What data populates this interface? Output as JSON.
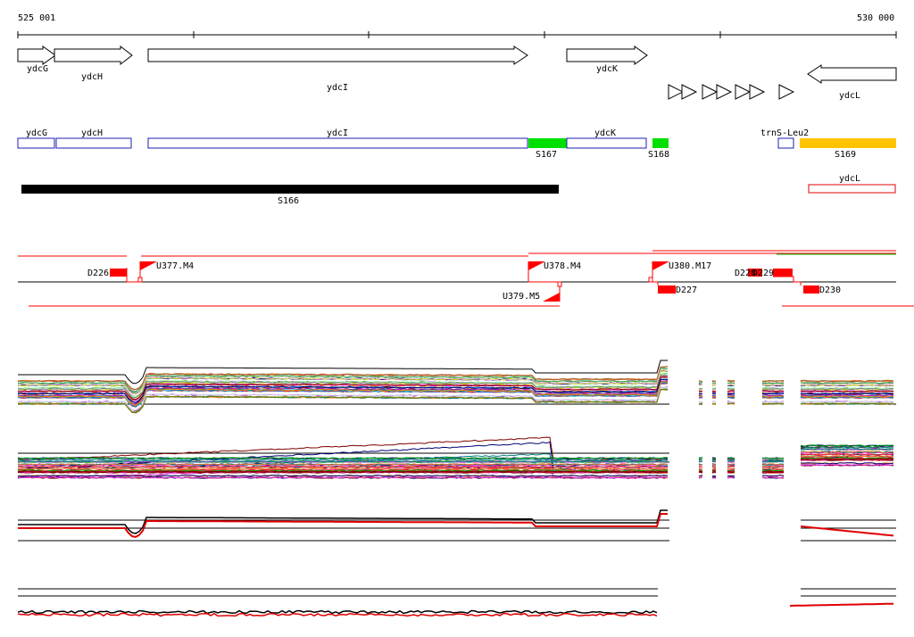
{
  "ruler": {
    "start_label": "525 001",
    "end_label": "530 000"
  },
  "arrow_genes": [
    {
      "id": "ydcG",
      "label": "ydcG",
      "strand": "+"
    },
    {
      "id": "ydcH",
      "label": "ydcH",
      "strand": "+"
    },
    {
      "id": "ydcI",
      "label": "ydcI",
      "strand": "+"
    },
    {
      "id": "ydcK",
      "label": "ydcK",
      "strand": "+"
    },
    {
      "id": "ydcL",
      "label": "ydcL",
      "strand": "-"
    }
  ],
  "box_features": [
    {
      "label": "ydcG",
      "color": "#1f1fb4",
      "filled": false
    },
    {
      "label": "ydcH",
      "color": "#1f1fb4",
      "filled": false
    },
    {
      "label": "ydcI",
      "color": "#1f1fb4",
      "filled": false
    },
    {
      "label": "S167",
      "color": "#00e000",
      "filled": true
    },
    {
      "label": "ydcK",
      "color": "#1f1fb4",
      "filled": false
    },
    {
      "label": "S168",
      "color": "#00e000",
      "filled": true
    },
    {
      "label": "trnS-Leu2",
      "color": "#1f1fb4",
      "filled": false
    },
    {
      "label": "S169",
      "color": "#ffc400",
      "filled": true
    },
    {
      "label": "S166",
      "color": "#000000",
      "filled": true
    },
    {
      "label": "ydcL",
      "color": "#e00000",
      "filled": false
    }
  ],
  "signals": [
    {
      "label": "D226",
      "kind": "down"
    },
    {
      "label": "U377.M4",
      "kind": "up"
    },
    {
      "label": "U378.M4",
      "kind": "up"
    },
    {
      "label": "U379.M5",
      "kind": "up"
    },
    {
      "label": "U380.M17",
      "kind": "up"
    },
    {
      "label": "D227",
      "kind": "down"
    },
    {
      "label": "D228",
      "kind": "down"
    },
    {
      "label": "D229",
      "kind": "down"
    },
    {
      "label": "D230",
      "kind": "down"
    }
  ],
  "colors": {
    "signal": "#ff0000",
    "gene_box": "#1f1fb4",
    "green": "#00e000",
    "orange": "#ffc400"
  }
}
